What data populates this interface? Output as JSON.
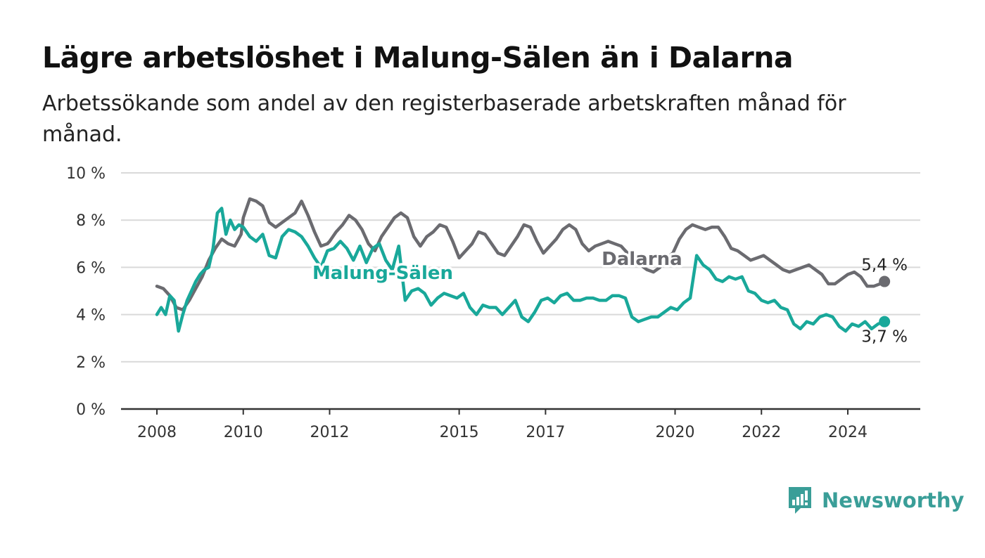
{
  "title": "Lägre arbetslöshet i Malung-Sälen än i Dalarna",
  "subtitle": "Arbetssökande som andel av den registerbaserade arbetskraften månad för månad.",
  "brand": {
    "name": "Newsworthy",
    "icon": "newsworthy-bar-chart-logo-icon",
    "color": "#3a9e98"
  },
  "chart_data": {
    "type": "line",
    "title": "Lägre arbetslöshet i Malung-Sälen än i Dalarna",
    "subtitle": "Arbetssökande som andel av den registerbaserade arbetskraften månad för månad.",
    "xlabel": "",
    "ylabel": "",
    "x_ticks": [
      "2008",
      "2010",
      "2012",
      "2015",
      "2017",
      "2020",
      "2022",
      "2024"
    ],
    "x_tick_values": [
      2008,
      2010,
      2012,
      2015,
      2017,
      2020,
      2022,
      2024
    ],
    "xlim": [
      2007.2,
      2025.5
    ],
    "y_ticks": [
      "0 %",
      "2 %",
      "4 %",
      "6 %",
      "8 %",
      "10 %"
    ],
    "y_tick_values": [
      0,
      2,
      4,
      6,
      8,
      10
    ],
    "ylim": [
      0,
      10
    ],
    "grid": true,
    "legend": "none (inline series labels)",
    "series": [
      {
        "name": "Dalarna",
        "color": "#6b6b70",
        "label_position": [
          2018.3,
          6.1
        ],
        "end_label": "5,4 %",
        "x": [
          2008.0,
          2008.15,
          2008.3,
          2008.45,
          2008.6,
          2008.75,
          2008.9,
          2009.05,
          2009.2,
          2009.35,
          2009.5,
          2009.65,
          2009.8,
          2009.95,
          2010.0,
          2010.15,
          2010.3,
          2010.45,
          2010.6,
          2010.75,
          2010.9,
          2011.05,
          2011.2,
          2011.35,
          2011.5,
          2011.65,
          2011.8,
          2011.95,
          2012.0,
          2012.15,
          2012.3,
          2012.45,
          2012.6,
          2012.75,
          2012.9,
          2013.05,
          2013.2,
          2013.35,
          2013.5,
          2013.65,
          2013.8,
          2013.95,
          2014.1,
          2014.25,
          2014.4,
          2014.55,
          2014.7,
          2014.85,
          2015.0,
          2015.15,
          2015.3,
          2015.45,
          2015.6,
          2015.75,
          2015.9,
          2016.05,
          2016.2,
          2016.35,
          2016.5,
          2016.65,
          2016.8,
          2016.95,
          2017.1,
          2017.25,
          2017.4,
          2017.55,
          2017.7,
          2017.85,
          2018.0,
          2018.15,
          2018.3,
          2018.45,
          2018.6,
          2018.75,
          2018.9,
          2019.05,
          2019.2,
          2019.35,
          2019.5,
          2019.65,
          2019.8,
          2019.95,
          2020.1,
          2020.25,
          2020.4,
          2020.55,
          2020.7,
          2020.85,
          2021.0,
          2021.15,
          2021.3,
          2021.45,
          2021.6,
          2021.75,
          2021.9,
          2022.05,
          2022.2,
          2022.35,
          2022.5,
          2022.65,
          2022.8,
          2022.95,
          2023.1,
          2023.25,
          2023.4,
          2023.55,
          2023.7,
          2023.85,
          2024.0,
          2024.15,
          2024.3,
          2024.45,
          2024.6,
          2024.75,
          2024.85
        ],
        "y": [
          5.2,
          5.1,
          4.8,
          4.3,
          4.2,
          4.6,
          5.1,
          5.6,
          6.3,
          6.8,
          7.2,
          7.0,
          6.9,
          7.4,
          8.1,
          8.9,
          8.8,
          8.6,
          7.9,
          7.7,
          7.9,
          8.1,
          8.3,
          8.8,
          8.2,
          7.5,
          6.9,
          7.0,
          7.1,
          7.5,
          7.8,
          8.2,
          8.0,
          7.6,
          7.0,
          6.7,
          7.3,
          7.7,
          8.1,
          8.3,
          8.1,
          7.3,
          6.9,
          7.3,
          7.5,
          7.8,
          7.7,
          7.1,
          6.4,
          6.7,
          7.0,
          7.5,
          7.4,
          7.0,
          6.6,
          6.5,
          6.9,
          7.3,
          7.8,
          7.7,
          7.1,
          6.6,
          6.9,
          7.2,
          7.6,
          7.8,
          7.6,
          7.0,
          6.7,
          6.9,
          7.0,
          7.1,
          7.0,
          6.9,
          6.6,
          6.4,
          6.1,
          5.9,
          5.8,
          6.0,
          6.4,
          6.6,
          7.2,
          7.6,
          7.8,
          7.7,
          7.6,
          7.7,
          7.7,
          7.3,
          6.8,
          6.7,
          6.5,
          6.3,
          6.4,
          6.5,
          6.3,
          6.1,
          5.9,
          5.8,
          5.9,
          6.0,
          6.1,
          5.9,
          5.7,
          5.3,
          5.3,
          5.5,
          5.7,
          5.8,
          5.6,
          5.2,
          5.2,
          5.3,
          5.4
        ]
      },
      {
        "name": "Malung-Sälen",
        "color": "#19a89a",
        "label_position": [
          2011.6,
          5.5
        ],
        "end_label": "3,7 %",
        "x": [
          2008.0,
          2008.1,
          2008.2,
          2008.3,
          2008.4,
          2008.5,
          2008.6,
          2008.7,
          2008.8,
          2008.9,
          2009.0,
          2009.1,
          2009.2,
          2009.3,
          2009.4,
          2009.5,
          2009.6,
          2009.7,
          2009.8,
          2009.9,
          2010.0,
          2010.15,
          2010.3,
          2010.45,
          2010.6,
          2010.75,
          2010.9,
          2011.05,
          2011.2,
          2011.35,
          2011.5,
          2011.65,
          2011.8,
          2011.95,
          2012.1,
          2012.25,
          2012.4,
          2012.55,
          2012.7,
          2012.85,
          2013.0,
          2013.15,
          2013.3,
          2013.45,
          2013.6,
          2013.75,
          2013.9,
          2014.05,
          2014.2,
          2014.35,
          2014.5,
          2014.65,
          2014.8,
          2014.95,
          2015.1,
          2015.25,
          2015.4,
          2015.55,
          2015.7,
          2015.85,
          2016.0,
          2016.15,
          2016.3,
          2016.45,
          2016.6,
          2016.75,
          2016.9,
          2017.05,
          2017.2,
          2017.35,
          2017.5,
          2017.65,
          2017.8,
          2017.95,
          2018.1,
          2018.25,
          2018.4,
          2018.55,
          2018.7,
          2018.85,
          2019.0,
          2019.15,
          2019.3,
          2019.45,
          2019.6,
          2019.75,
          2019.9,
          2020.05,
          2020.2,
          2020.35,
          2020.5,
          2020.65,
          2020.8,
          2020.95,
          2021.1,
          2021.25,
          2021.4,
          2021.55,
          2021.7,
          2021.85,
          2022.0,
          2022.15,
          2022.3,
          2022.45,
          2022.6,
          2022.75,
          2022.9,
          2023.05,
          2023.2,
          2023.35,
          2023.5,
          2023.65,
          2023.8,
          2023.95,
          2024.1,
          2024.25,
          2024.4,
          2024.55,
          2024.7,
          2024.85
        ],
        "y": [
          4.0,
          4.3,
          4.0,
          4.8,
          4.6,
          3.3,
          4.0,
          4.6,
          5.0,
          5.4,
          5.7,
          5.9,
          6.0,
          6.8,
          8.3,
          8.5,
          7.4,
          8.0,
          7.6,
          7.8,
          7.7,
          7.3,
          7.1,
          7.4,
          6.5,
          6.4,
          7.3,
          7.6,
          7.5,
          7.3,
          6.9,
          6.4,
          6.0,
          6.7,
          6.8,
          7.1,
          6.8,
          6.3,
          6.9,
          6.2,
          6.8,
          7.0,
          6.3,
          5.9,
          6.9,
          4.6,
          5.0,
          5.1,
          4.9,
          4.4,
          4.7,
          4.9,
          4.8,
          4.7,
          4.9,
          4.3,
          4.0,
          4.4,
          4.3,
          4.3,
          4.0,
          4.3,
          4.6,
          3.9,
          3.7,
          4.1,
          4.6,
          4.7,
          4.5,
          4.8,
          4.9,
          4.6,
          4.6,
          4.7,
          4.7,
          4.6,
          4.6,
          4.8,
          4.8,
          4.7,
          3.9,
          3.7,
          3.8,
          3.9,
          3.9,
          4.1,
          4.3,
          4.2,
          4.5,
          4.7,
          6.5,
          6.1,
          5.9,
          5.5,
          5.4,
          5.6,
          5.5,
          5.6,
          5.0,
          4.9,
          4.6,
          4.5,
          4.6,
          4.3,
          4.2,
          3.6,
          3.4,
          3.7,
          3.6,
          3.9,
          4.0,
          3.9,
          3.5,
          3.3,
          3.6,
          3.5,
          3.7,
          3.4,
          3.6,
          3.7
        ]
      }
    ]
  }
}
